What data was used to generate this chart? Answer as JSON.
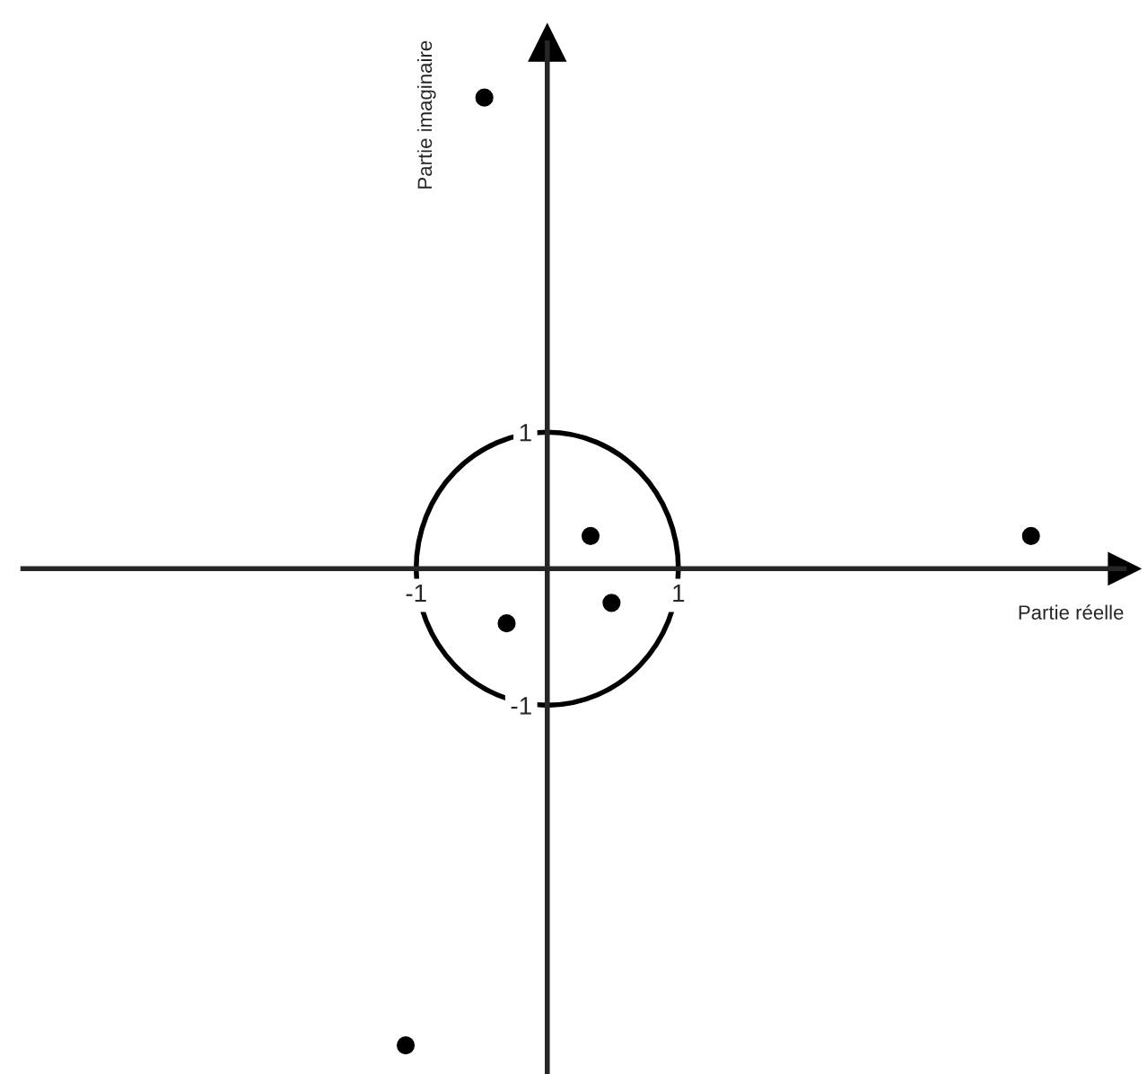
{
  "chart_data": {
    "type": "scatter",
    "xlabel": "Partie réelle",
    "ylabel": "Partie imaginaire",
    "xlim": [
      -4,
      4.4
    ],
    "ylim": [
      -3.7,
      3.85
    ],
    "xticks": [
      -1,
      1
    ],
    "yticks": [
      -1,
      1
    ],
    "grid": false,
    "legend": false,
    "marker": "circle",
    "series": [
      {
        "color": "#000000",
        "x": [
          -0.48,
          0.33,
          3.69,
          0.49,
          -0.31,
          -1.08
        ],
        "values": [
          3.45,
          0.24,
          0.24,
          -0.25,
          -0.4,
          -3.49
        ]
      }
    ]
  }
}
